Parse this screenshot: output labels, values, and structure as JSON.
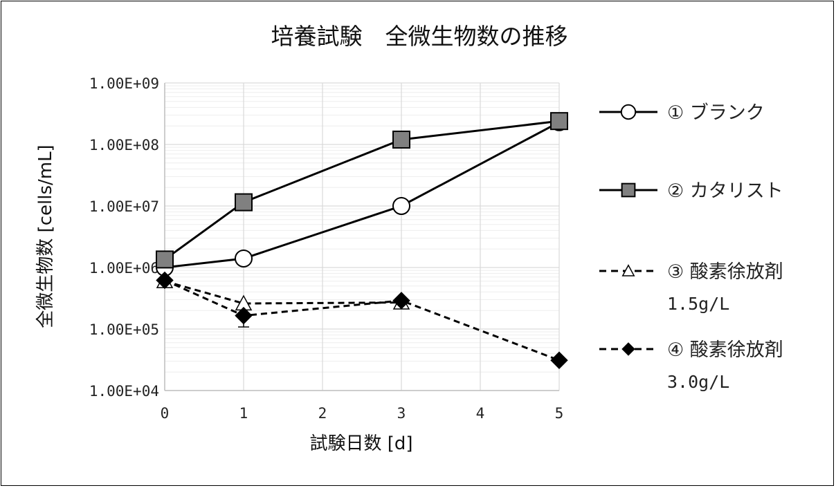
{
  "chart_data": {
    "type": "line",
    "title": "培養試験　全微生物数の推移",
    "xlabel": "試験日数 [d]",
    "ylabel": "全微生物数 [cells/mL]",
    "x_ticks": [
      0,
      1,
      2,
      3,
      4,
      5
    ],
    "xlim": [
      0,
      5
    ],
    "y_scale": "log",
    "ylim": [
      10000,
      1000000000
    ],
    "y_ticks": [
      10000,
      100000,
      1000000,
      10000000,
      100000000,
      1000000000
    ],
    "y_tick_labels": [
      "1.00E+04",
      "1.00E+05",
      "1.00E+06",
      "1.00E+07",
      "1.00E+08",
      "1.00E+09"
    ],
    "grid": true,
    "legend_position": "right",
    "series": [
      {
        "name": "① ブランク",
        "marker": "circle-open",
        "line": "solid",
        "x": [
          0,
          1,
          3,
          5
        ],
        "y": [
          1000000,
          1400000,
          10000000,
          230000000
        ]
      },
      {
        "name": "② カタリスト",
        "marker": "square",
        "line": "solid",
        "x": [
          0,
          1,
          3,
          5
        ],
        "y": [
          1350000,
          11500000,
          120000000,
          240000000
        ]
      },
      {
        "name": "③ 酸素徐放剤",
        "name_line2": "1.5g/L",
        "marker": "triangle-open",
        "line": "dashed",
        "x": [
          0,
          1,
          3
        ],
        "y": [
          600000,
          260000,
          270000
        ]
      },
      {
        "name": "④ 酸素徐放剤",
        "name_line2": "3.0g/L",
        "marker": "diamond",
        "line": "dashed",
        "x": [
          0,
          1,
          3,
          5
        ],
        "y": [
          620000,
          165000,
          290000,
          31000
        ]
      }
    ],
    "error_bars": [
      {
        "series": 3,
        "x": 1,
        "low": 108000,
        "high": 220000
      }
    ],
    "colors": {
      "line": "#000000",
      "marker_fill_dark": "#808080",
      "marker_fill_open": "#ffffff",
      "grid": "#d9d9d9",
      "grid_minor": "#eeeeee"
    }
  }
}
